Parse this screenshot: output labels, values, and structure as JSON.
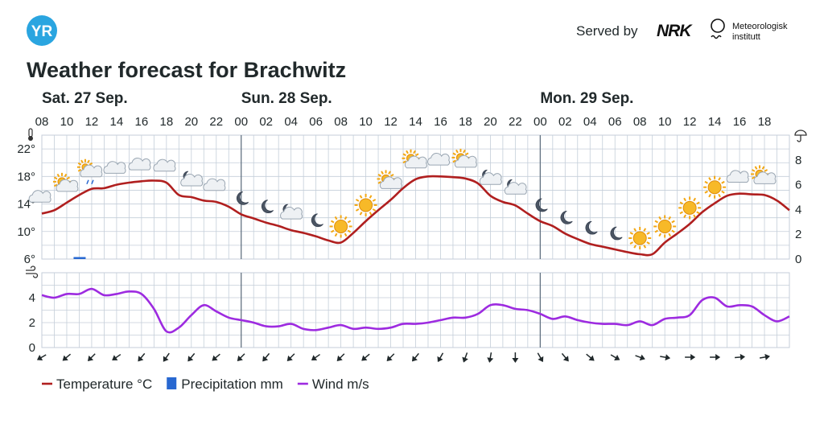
{
  "header": {
    "logo_text": "YR",
    "served_by": "Served by",
    "partner_logo_text": "NRK",
    "met_line1": "Meteorologisk",
    "met_line2": "institutt",
    "title": "Weather forecast for Brachwitz"
  },
  "colors": {
    "temperature": "#b01f1f",
    "precipitation": "#2868d1",
    "wind": "#9d2be0",
    "grid": "#c4ced9",
    "day_divider": "#5a6a7a",
    "logo": "#2aa5e0"
  },
  "chart_data": {
    "type": "line",
    "days": [
      {
        "label": "Sat. 27 Sep.",
        "hour": 8
      },
      {
        "label": "Sun. 28 Sep.",
        "hour": 24
      },
      {
        "label": "Mon. 29 Sep.",
        "hour": 48
      }
    ],
    "hour_ticks": [
      "08",
      "10",
      "12",
      "14",
      "16",
      "18",
      "20",
      "22",
      "00",
      "02",
      "04",
      "06",
      "08",
      "10",
      "12",
      "14",
      "16",
      "18",
      "20",
      "22",
      "00",
      "02",
      "04",
      "06",
      "08",
      "10",
      "12",
      "14",
      "16",
      "18"
    ],
    "temperature": {
      "unit_label": "Temperature °C",
      "axis_ticks": [
        "6°",
        "10°",
        "14°",
        "18°",
        "22°"
      ],
      "ylim": [
        6,
        24
      ],
      "hours": [
        8,
        9,
        10,
        11,
        12,
        13,
        14,
        15,
        16,
        17,
        18,
        19,
        20,
        21,
        22,
        23,
        24,
        25,
        26,
        27,
        28,
        29,
        30,
        31,
        32,
        33,
        34,
        35,
        36,
        37,
        38,
        39,
        40,
        41,
        42,
        43,
        44,
        45,
        46,
        47,
        48,
        49,
        50,
        51,
        52,
        53,
        54,
        55,
        56,
        57,
        58,
        59,
        60,
        61,
        62,
        63,
        64,
        65,
        66,
        67,
        68
      ],
      "values": [
        12.6,
        13.1,
        14.2,
        15.3,
        16.2,
        16.3,
        16.8,
        17.1,
        17.3,
        17.4,
        17.1,
        15.3,
        15.0,
        14.5,
        14.3,
        13.6,
        12.5,
        11.9,
        11.3,
        10.8,
        10.2,
        9.8,
        9.3,
        8.7,
        8.4,
        9.8,
        11.5,
        13.1,
        14.6,
        16.3,
        17.6,
        18.0,
        18.0,
        17.9,
        17.7,
        17.0,
        15.2,
        14.3,
        13.8,
        12.6,
        11.5,
        10.8,
        9.7,
        8.9,
        8.2,
        7.8,
        7.4,
        7.0,
        6.7,
        6.7,
        8.4,
        9.7,
        11.1,
        12.8,
        14.1,
        15.2,
        15.5,
        15.4,
        15.3,
        14.5,
        13.1
      ]
    },
    "precipitation": {
      "unit_label": "Precipitation mm",
      "axis_ticks": [
        "0",
        "2",
        "4",
        "6",
        "8"
      ],
      "ylim": [
        0,
        10
      ],
      "hours": [
        11
      ],
      "values": [
        0.1
      ]
    },
    "wind": {
      "unit_label": "Wind m/s",
      "axis_ticks": [
        "0",
        "2",
        "4"
      ],
      "ylim": [
        0,
        6
      ],
      "hours": [
        8,
        9,
        10,
        11,
        12,
        13,
        14,
        15,
        16,
        17,
        18,
        19,
        20,
        21,
        22,
        23,
        24,
        25,
        26,
        27,
        28,
        29,
        30,
        31,
        32,
        33,
        34,
        35,
        36,
        37,
        38,
        39,
        40,
        41,
        42,
        43,
        44,
        45,
        46,
        47,
        48,
        49,
        50,
        51,
        52,
        53,
        54,
        55,
        56,
        57,
        58,
        59,
        60,
        61,
        62,
        63,
        64,
        65,
        66,
        67,
        68
      ],
      "values": [
        4.2,
        4.0,
        4.3,
        4.3,
        4.7,
        4.2,
        4.3,
        4.5,
        4.3,
        3.1,
        1.3,
        1.6,
        2.6,
        3.4,
        2.9,
        2.4,
        2.2,
        2.0,
        1.7,
        1.7,
        1.9,
        1.5,
        1.4,
        1.6,
        1.8,
        1.5,
        1.6,
        1.5,
        1.6,
        1.9,
        1.9,
        2.0,
        2.2,
        2.4,
        2.4,
        2.7,
        3.4,
        3.4,
        3.1,
        3.0,
        2.7,
        2.3,
        2.5,
        2.2,
        2.0,
        1.9,
        1.9,
        1.8,
        2.1,
        1.8,
        2.3,
        2.4,
        2.6,
        3.8,
        4.0,
        3.3,
        3.4,
        3.3,
        2.6,
        2.1,
        2.5
      ]
    },
    "symbols": [
      {
        "hour": 8,
        "icon": "cloud-icon"
      },
      {
        "hour": 9,
        "icon": "partly-cloudy-day-icon"
      },
      {
        "hour": 10,
        "icon": "light-rain-icon"
      },
      {
        "hour": 11,
        "icon": "cloud-icon"
      },
      {
        "hour": 12,
        "icon": "cloud-icon"
      },
      {
        "hour": 13,
        "icon": "cloud-icon"
      },
      {
        "hour": 14,
        "icon": "partly-cloudy-night-icon"
      },
      {
        "hour": 15,
        "icon": "cloud-icon"
      },
      {
        "hour": 16,
        "icon": "moon-icon"
      },
      {
        "hour": 17,
        "icon": "moon-icon"
      },
      {
        "hour": 18,
        "icon": "partly-cloudy-night-icon"
      },
      {
        "hour": 19,
        "icon": "moon-icon"
      },
      {
        "hour": 20,
        "icon": "sun-icon"
      },
      {
        "hour": 21,
        "icon": "sun-icon"
      },
      {
        "hour": 22,
        "icon": "partly-cloudy-day-icon"
      },
      {
        "hour": 23,
        "icon": "partly-cloudy-day-icon"
      },
      {
        "hour": 24,
        "icon": "cloud-icon"
      },
      {
        "hour": 25,
        "icon": "partly-cloudy-day-icon"
      },
      {
        "hour": 26,
        "icon": "partly-cloudy-night-icon"
      },
      {
        "hour": 27,
        "icon": "partly-cloudy-night-icon"
      },
      {
        "hour": 28,
        "icon": "moon-icon"
      },
      {
        "hour": 29,
        "icon": "moon-icon"
      },
      {
        "hour": 30,
        "icon": "moon-icon"
      },
      {
        "hour": 31,
        "icon": "moon-icon"
      },
      {
        "hour": 32,
        "icon": "sun-icon"
      },
      {
        "hour": 33,
        "icon": "sun-icon"
      },
      {
        "hour": 34,
        "icon": "sun-icon"
      },
      {
        "hour": 35,
        "icon": "sun-icon"
      },
      {
        "hour": 36,
        "icon": "cloud-icon"
      },
      {
        "hour": 37,
        "icon": "partly-cloudy-day-icon"
      }
    ],
    "wind_directions_deg": [
      60,
      50,
      45,
      55,
      40,
      35,
      40,
      50,
      45,
      40,
      45,
      55,
      45,
      50,
      45,
      40,
      30,
      20,
      10,
      0,
      330,
      320,
      310,
      300,
      290,
      280,
      270,
      270,
      265,
      260
    ]
  },
  "legend": [
    {
      "label": "Temperature °C",
      "color": "#b01f1f",
      "shape": "line"
    },
    {
      "label": "Precipitation mm",
      "color": "#2868d1",
      "shape": "square"
    },
    {
      "label": "Wind m/s",
      "color": "#9d2be0",
      "shape": "line"
    }
  ]
}
